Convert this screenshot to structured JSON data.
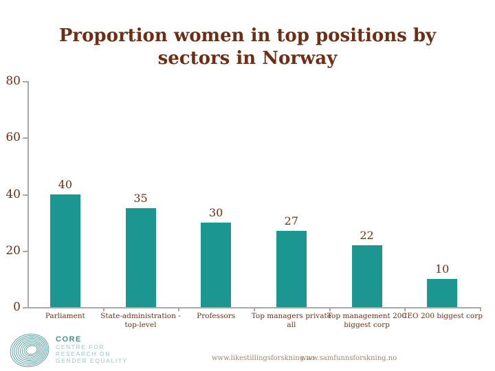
{
  "title": {
    "line1": "Proportion women in top positions by",
    "line2": "sectors in Norway"
  },
  "chart_data": {
    "type": "bar",
    "title": "Proportion women in top positions by sectors in Norway",
    "categories": [
      "Parliament",
      "State-administration - top-level",
      "Professors",
      "Top managers private all",
      "Top management 200 biggest corp",
      "CEO 200 biggest corp"
    ],
    "values": [
      40,
      35,
      30,
      27,
      22,
      10
    ],
    "data_labels": [
      40,
      35,
      30,
      27,
      22,
      10
    ],
    "xlabel": "",
    "ylabel": "",
    "ylim": [
      0,
      80
    ],
    "yticks": [
      0,
      20,
      40,
      60,
      80
    ],
    "grid": false,
    "legend": false,
    "bar_color": "#1B9690",
    "axis_color": "#A8A8A8",
    "label_color": "#6E2E14"
  },
  "logo": {
    "name": "CORE",
    "lines": [
      "CENTRE FOR",
      "RESEARCH ON",
      "GENDER EQUALITY"
    ],
    "teal": "#3E9094"
  },
  "footer": {
    "links": [
      "www.likestillingsforskning.no",
      "www.samfunnsforskning.no"
    ]
  },
  "colors": {
    "text": "#6E2E14",
    "bar": "#1B9690",
    "axis": "#A8A8A8",
    "footer_text": "#9C8574",
    "background": "#FFFFFF"
  }
}
